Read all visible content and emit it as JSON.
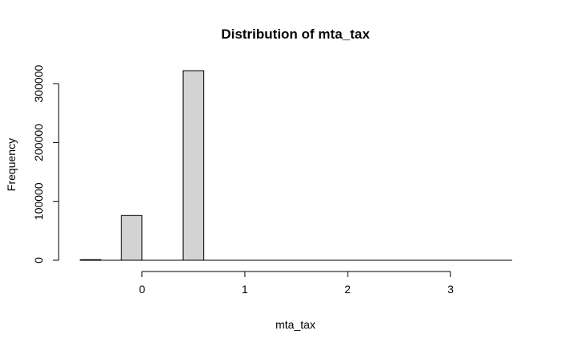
{
  "chart_data": {
    "type": "bar",
    "title": "Distribution of mta_tax",
    "xlabel": "mta_tax",
    "ylabel": "Frequency",
    "bins": [
      {
        "x0": -0.6,
        "x1": -0.4,
        "count": 1000
      },
      {
        "x0": -0.4,
        "x1": -0.2,
        "count": 0
      },
      {
        "x0": -0.2,
        "x1": 0.0,
        "count": 76000
      },
      {
        "x0": 0.0,
        "x1": 0.2,
        "count": 0
      },
      {
        "x0": 0.2,
        "x1": 0.4,
        "count": 0
      },
      {
        "x0": 0.4,
        "x1": 0.6,
        "count": 322000
      },
      {
        "x0": 0.6,
        "x1": 0.8,
        "count": 0
      },
      {
        "x0": 0.8,
        "x1": 1.0,
        "count": 0
      },
      {
        "x0": 1.0,
        "x1": 1.2,
        "count": 0
      },
      {
        "x0": 1.2,
        "x1": 1.4,
        "count": 0
      },
      {
        "x0": 1.4,
        "x1": 1.6,
        "count": 0
      },
      {
        "x0": 1.6,
        "x1": 1.8,
        "count": 0
      },
      {
        "x0": 1.8,
        "x1": 2.0,
        "count": 0
      },
      {
        "x0": 2.0,
        "x1": 2.2,
        "count": 0
      },
      {
        "x0": 2.2,
        "x1": 2.4,
        "count": 0
      },
      {
        "x0": 2.4,
        "x1": 2.6,
        "count": 0
      },
      {
        "x0": 2.6,
        "x1": 2.8,
        "count": 0
      },
      {
        "x0": 2.8,
        "x1": 3.0,
        "count": 0
      },
      {
        "x0": 3.0,
        "x1": 3.2,
        "count": 0
      },
      {
        "x0": 3.2,
        "x1": 3.4,
        "count": 0
      },
      {
        "x0": 3.4,
        "x1": 3.6,
        "count": 0
      }
    ],
    "xlim": [
      -0.6,
      3.6
    ],
    "ylim": [
      0,
      322000
    ],
    "x_ticks": [
      0,
      1,
      2,
      3
    ],
    "x_tick_labels": [
      "0",
      "1",
      "2",
      "3"
    ],
    "y_ticks": [
      0,
      100000,
      200000,
      300000
    ],
    "y_tick_labels": [
      "0",
      "100000",
      "200000",
      "300000"
    ],
    "grid": false,
    "colors": {
      "bar_fill": "#d3d3d3",
      "bar_stroke": "#000000"
    }
  }
}
